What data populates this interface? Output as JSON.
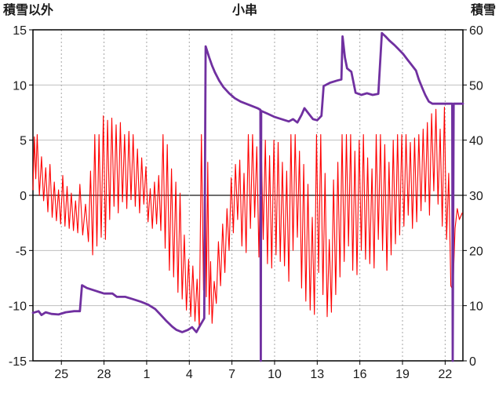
{
  "header": {
    "left_axis_title": "積雪以外",
    "chart_title": "小串",
    "right_axis_title": "積雪"
  },
  "chart_data": {
    "type": "line",
    "title": "小串",
    "x_range": [
      0,
      30.25
    ],
    "x_ticks": {
      "positions": [
        2,
        5,
        8,
        11,
        14,
        17,
        20,
        23,
        26,
        29
      ],
      "labels": [
        "25",
        "28",
        "1",
        "4",
        "7",
        "10",
        "13",
        "16",
        "19",
        "22"
      ]
    },
    "left_axis": {
      "title": "積雪以外",
      "range": [
        -15,
        15
      ],
      "ticks": [
        -15,
        -10,
        -5,
        0,
        5,
        10,
        15
      ]
    },
    "right_axis": {
      "title": "積雪",
      "range": [
        0,
        60
      ],
      "ticks": [
        0,
        10,
        20,
        30,
        40,
        50,
        60
      ]
    },
    "grid": {
      "vertical": "dashed",
      "horizontal": "solid"
    },
    "colors": {
      "grid": "#BFBFBF",
      "vgrid": "#A6A6A6",
      "zero_line": "#595959",
      "border": "#000000",
      "text": "#1a1a1a",
      "red_series": "#FF0000",
      "purple_series": "#7030A0"
    },
    "series": [
      {
        "name": "積雪以外",
        "axis": "left",
        "color": "#FF0000",
        "width": 1.1,
        "points": [
          [
            0.0,
            0.5
          ],
          [
            0.1,
            5.3
          ],
          [
            0.2,
            1.5
          ],
          [
            0.3,
            5.5
          ],
          [
            0.45,
            0
          ],
          [
            0.6,
            3.5
          ],
          [
            0.75,
            -0.5
          ],
          [
            0.9,
            2.5
          ],
          [
            1.05,
            -1.5
          ],
          [
            1.2,
            2.8
          ],
          [
            1.35,
            -2
          ],
          [
            1.5,
            1.2
          ],
          [
            1.65,
            -2.3
          ],
          [
            1.8,
            0.5
          ],
          [
            1.95,
            -2.6
          ],
          [
            2.1,
            1.8
          ],
          [
            2.25,
            -2.8
          ],
          [
            2.4,
            0.8
          ],
          [
            2.55,
            -3
          ],
          [
            2.7,
            0.2
          ],
          [
            2.85,
            -3.2
          ],
          [
            3.0,
            -0.5
          ],
          [
            3.15,
            -3.4
          ],
          [
            3.3,
            1
          ],
          [
            3.5,
            -3.6
          ],
          [
            3.7,
            -0.8
          ],
          [
            3.9,
            -4.2
          ],
          [
            4.05,
            2.2
          ],
          [
            4.2,
            -5.4
          ],
          [
            4.35,
            5.5
          ],
          [
            4.5,
            -4.6
          ],
          [
            4.65,
            5.5
          ],
          [
            4.8,
            -3.8
          ],
          [
            4.95,
            7.2
          ],
          [
            5.1,
            -4
          ],
          [
            5.25,
            6.8
          ],
          [
            5.4,
            -2.2
          ],
          [
            5.55,
            7
          ],
          [
            5.7,
            -1
          ],
          [
            5.85,
            6.4
          ],
          [
            6.0,
            -1.6
          ],
          [
            6.15,
            6.6
          ],
          [
            6.3,
            -0.6
          ],
          [
            6.45,
            5.5
          ],
          [
            6.6,
            -1.2
          ],
          [
            6.75,
            5.8
          ],
          [
            6.9,
            -0.4
          ],
          [
            7.05,
            5.5
          ],
          [
            7.2,
            -1
          ],
          [
            7.35,
            4.2
          ],
          [
            7.5,
            -1.6
          ],
          [
            7.65,
            3.4
          ],
          [
            7.8,
            -0.8
          ],
          [
            7.95,
            2.6
          ],
          [
            8.1,
            -2.4
          ],
          [
            8.25,
            0.6
          ],
          [
            8.4,
            -3
          ],
          [
            8.55,
            1.2
          ],
          [
            8.7,
            -2.6
          ],
          [
            8.85,
            1.8
          ],
          [
            9.0,
            -3.2
          ],
          [
            9.15,
            5.5
          ],
          [
            9.3,
            -4.8
          ],
          [
            9.45,
            4.6
          ],
          [
            9.6,
            -6.8
          ],
          [
            9.75,
            2.4
          ],
          [
            9.9,
            -7.4
          ],
          [
            10.05,
            1.2
          ],
          [
            10.2,
            -8.8
          ],
          [
            10.35,
            0.2
          ],
          [
            10.5,
            -9.4
          ],
          [
            10.65,
            -3.6
          ],
          [
            10.8,
            -10.4
          ],
          [
            10.95,
            -5.8
          ],
          [
            11.1,
            -11
          ],
          [
            11.25,
            -6.4
          ],
          [
            11.4,
            -11.4
          ],
          [
            11.55,
            -7.6
          ],
          [
            11.7,
            -12
          ],
          [
            11.85,
            5.5
          ],
          [
            12.0,
            -8.6
          ],
          [
            12.1,
            5.5
          ],
          [
            12.2,
            -9.2
          ],
          [
            12.3,
            3
          ],
          [
            12.4,
            -10.8
          ],
          [
            12.5,
            -6
          ],
          [
            12.6,
            -11.6
          ],
          [
            12.75,
            -7.8
          ],
          [
            12.9,
            -9.8
          ],
          [
            13.05,
            -4.2
          ],
          [
            13.2,
            -8.2
          ],
          [
            13.35,
            -2.6
          ],
          [
            13.5,
            -7
          ],
          [
            13.65,
            -1.2
          ],
          [
            13.8,
            -5
          ],
          [
            13.95,
            1.6
          ],
          [
            14.1,
            -3.4
          ],
          [
            14.25,
            2.8
          ],
          [
            14.4,
            -2.2
          ],
          [
            14.55,
            3.2
          ],
          [
            14.7,
            -4.6
          ],
          [
            14.85,
            2
          ],
          [
            15.0,
            -5.2
          ],
          [
            15.15,
            5.5
          ],
          [
            15.3,
            -3
          ],
          [
            15.45,
            5.5
          ],
          [
            15.6,
            -2
          ],
          [
            15.75,
            4.4
          ],
          [
            15.9,
            -5.6
          ],
          [
            16.05,
            5.5
          ],
          [
            16.2,
            -4
          ],
          [
            16.35,
            5
          ],
          [
            16.5,
            -6.2
          ],
          [
            16.65,
            3.6
          ],
          [
            16.8,
            -6.6
          ],
          [
            16.95,
            5
          ],
          [
            17.1,
            -5.4
          ],
          [
            17.25,
            4.8
          ],
          [
            17.4,
            -6
          ],
          [
            17.55,
            3
          ],
          [
            17.7,
            -6.4
          ],
          [
            17.85,
            2.2
          ],
          [
            18.0,
            -7.8
          ],
          [
            18.15,
            5.5
          ],
          [
            18.3,
            -5
          ],
          [
            18.45,
            5.5
          ],
          [
            18.6,
            -3.8
          ],
          [
            18.75,
            4
          ],
          [
            18.9,
            -8.4
          ],
          [
            19.05,
            2.8
          ],
          [
            19.2,
            -9.6
          ],
          [
            19.35,
            1
          ],
          [
            19.5,
            -10.4
          ],
          [
            19.65,
            -2
          ],
          [
            19.8,
            -10.8
          ],
          [
            19.95,
            5.5
          ],
          [
            20.1,
            -7
          ],
          [
            20.25,
            5.5
          ],
          [
            20.4,
            -9
          ],
          [
            20.55,
            2
          ],
          [
            20.7,
            -11
          ],
          [
            20.85,
            -4
          ],
          [
            21.0,
            -10.6
          ],
          [
            21.15,
            1.4
          ],
          [
            21.3,
            -9
          ],
          [
            21.45,
            3
          ],
          [
            21.6,
            -7.4
          ],
          [
            21.75,
            5.5
          ],
          [
            21.9,
            -6
          ],
          [
            22.05,
            5.5
          ],
          [
            22.2,
            -4.6
          ],
          [
            22.35,
            5.5
          ],
          [
            22.5,
            -6.8
          ],
          [
            22.65,
            4
          ],
          [
            22.8,
            -7.2
          ],
          [
            22.95,
            5
          ],
          [
            23.1,
            -5
          ],
          [
            23.25,
            5.5
          ],
          [
            23.4,
            -5.8
          ],
          [
            23.55,
            3.4
          ],
          [
            23.7,
            -6.2
          ],
          [
            23.85,
            2.4
          ],
          [
            24.0,
            -6.6
          ],
          [
            24.15,
            5.5
          ],
          [
            24.3,
            -4
          ],
          [
            24.45,
            5.5
          ],
          [
            24.6,
            -5
          ],
          [
            24.75,
            4.6
          ],
          [
            24.9,
            -6.8
          ],
          [
            25.05,
            3
          ],
          [
            25.2,
            -5.4
          ],
          [
            25.35,
            5
          ],
          [
            25.5,
            -4.4
          ],
          [
            25.65,
            5.5
          ],
          [
            25.8,
            -3.6
          ],
          [
            25.95,
            5.5
          ],
          [
            26.1,
            -2.8
          ],
          [
            26.25,
            5.5
          ],
          [
            26.4,
            -1.8
          ],
          [
            26.55,
            4.8
          ],
          [
            26.7,
            -3
          ],
          [
            26.85,
            5.2
          ],
          [
            27.0,
            -2.4
          ],
          [
            27.15,
            5.5
          ],
          [
            27.3,
            -1.4
          ],
          [
            27.45,
            6
          ],
          [
            27.6,
            -0.6
          ],
          [
            27.75,
            6.6
          ],
          [
            27.9,
            -1.8
          ],
          [
            28.05,
            7.4
          ],
          [
            28.2,
            0.4
          ],
          [
            28.35,
            7.8
          ],
          [
            28.5,
            -0.8
          ],
          [
            28.65,
            6
          ],
          [
            28.8,
            -2.8
          ],
          [
            28.95,
            8
          ],
          [
            29.1,
            -4
          ],
          [
            29.25,
            2
          ],
          [
            29.4,
            -8.2
          ],
          [
            29.55,
            -8.6
          ],
          [
            29.7,
            -3
          ],
          [
            29.85,
            -1.2
          ],
          [
            30.0,
            -2.2
          ],
          [
            30.2,
            -1.6
          ]
        ]
      },
      {
        "name": "積雪",
        "axis": "right",
        "color": "#7030A0",
        "width": 2.8,
        "points": [
          [
            0,
            8.7
          ],
          [
            0.4,
            9
          ],
          [
            0.6,
            8.3
          ],
          [
            0.9,
            8.8
          ],
          [
            1.3,
            8.5
          ],
          [
            1.8,
            8.4
          ],
          [
            2.3,
            8.8
          ],
          [
            2.9,
            9
          ],
          [
            3.3,
            9
          ],
          [
            3.45,
            13.7
          ],
          [
            3.8,
            13.2
          ],
          [
            4.4,
            12.7
          ],
          [
            5,
            12.2
          ],
          [
            5.6,
            12.2
          ],
          [
            5.9,
            11.6
          ],
          [
            6.5,
            11.6
          ],
          [
            7,
            11.2
          ],
          [
            7.6,
            10.7
          ],
          [
            8.1,
            10.2
          ],
          [
            8.6,
            9.4
          ],
          [
            9,
            8.3
          ],
          [
            9.4,
            7.2
          ],
          [
            9.8,
            6.2
          ],
          [
            10.1,
            5.6
          ],
          [
            10.5,
            5.2
          ],
          [
            10.9,
            5.6
          ],
          [
            11.2,
            6.1
          ],
          [
            11.5,
            5.2
          ],
          [
            11.8,
            6.6
          ],
          [
            12.05,
            7.7
          ],
          [
            12.15,
            57
          ],
          [
            12.4,
            55
          ],
          [
            12.6,
            53.5
          ],
          [
            12.8,
            52.3
          ],
          [
            13.1,
            50.8
          ],
          [
            13.4,
            49.6
          ],
          [
            13.8,
            48.5
          ],
          [
            14.2,
            47.6
          ],
          [
            14.6,
            47
          ],
          [
            15.2,
            46.4
          ],
          [
            15.8,
            45.8
          ],
          [
            16,
            45.5
          ],
          [
            16.03,
            0
          ],
          [
            16.06,
            45.3
          ],
          [
            16.5,
            44.8
          ],
          [
            17,
            44.2
          ],
          [
            17.5,
            43.8
          ],
          [
            18,
            43.4
          ],
          [
            18.3,
            43.8
          ],
          [
            18.6,
            43.2
          ],
          [
            18.9,
            44.6
          ],
          [
            19.1,
            45.8
          ],
          [
            19.4,
            44.8
          ],
          [
            19.7,
            43.8
          ],
          [
            20,
            43.6
          ],
          [
            20.3,
            44.4
          ],
          [
            20.45,
            49.8
          ],
          [
            20.9,
            50.4
          ],
          [
            21.4,
            50.8
          ],
          [
            21.7,
            51
          ],
          [
            21.78,
            58.8
          ],
          [
            21.95,
            55
          ],
          [
            22.1,
            53
          ],
          [
            22.4,
            52.4
          ],
          [
            22.7,
            48.6
          ],
          [
            23.1,
            48.2
          ],
          [
            23.5,
            48.5
          ],
          [
            23.9,
            48.2
          ],
          [
            24.3,
            48.4
          ],
          [
            24.55,
            59.4
          ],
          [
            24.8,
            58.8
          ],
          [
            25.1,
            58
          ],
          [
            25.45,
            57.2
          ],
          [
            25.75,
            56.4
          ],
          [
            26.05,
            55.6
          ],
          [
            26.35,
            54.6
          ],
          [
            26.65,
            53.6
          ],
          [
            26.95,
            52.6
          ],
          [
            27.15,
            51
          ],
          [
            27.4,
            49.4
          ],
          [
            27.6,
            48.2
          ],
          [
            27.85,
            47
          ],
          [
            28.1,
            46.6
          ],
          [
            28.6,
            46.6
          ],
          [
            29.1,
            46.6
          ],
          [
            29.5,
            46.6
          ],
          [
            29.53,
            0
          ],
          [
            29.6,
            46.6
          ],
          [
            30.25,
            46.6
          ]
        ]
      }
    ]
  }
}
